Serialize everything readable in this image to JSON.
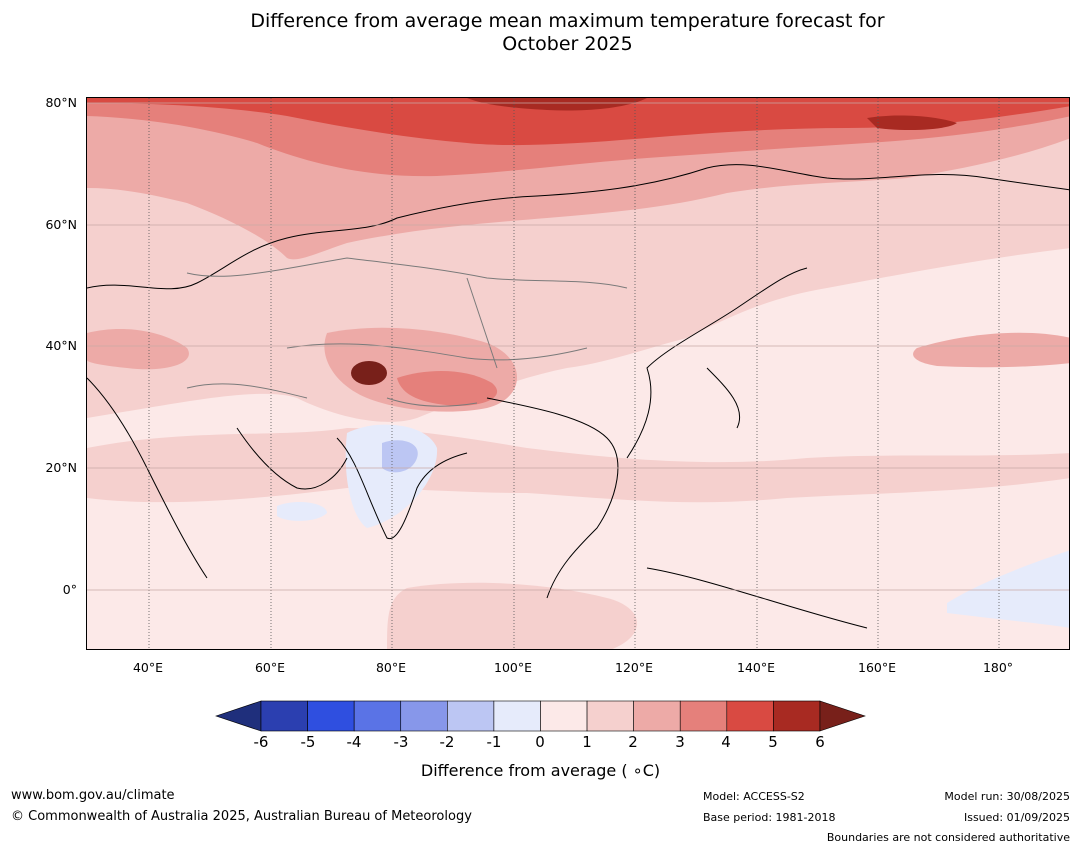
{
  "title_line1": "Difference from average mean maximum temperature forecast for",
  "title_line2": "October 2025",
  "map": {
    "lat_labels": [
      "80°N",
      "60°N",
      "40°N",
      "20°N",
      "0°"
    ],
    "lon_labels": [
      "40°E",
      "60°E",
      "80°E",
      "100°E",
      "120°E",
      "140°E",
      "160°E",
      "180°"
    ]
  },
  "colorbar": {
    "tick_labels": [
      "-6",
      "-5",
      "-4",
      "-3",
      "-2",
      "-1",
      "0",
      "1",
      "2",
      "3",
      "4",
      "5",
      "6"
    ],
    "colors": [
      "#1f2f7c",
      "#2b3fb0",
      "#2f4fe0",
      "#5a73e6",
      "#8797ea",
      "#bcc6f3",
      "#e6ebfb",
      "#fce9e8",
      "#f5d0ce",
      "#edaaa7",
      "#e5807b",
      "#d94a42",
      "#a82a22",
      "#78201a"
    ],
    "label": "Difference from average ( ∘C)"
  },
  "footer": {
    "website": "www.bom.gov.au/climate",
    "copyright": "© Commonwealth of Australia 2025, Australian Bureau of Meteorology",
    "model": "Model: ACCESS-S2",
    "base_period": "Base period: 1981-2018",
    "model_run": "Model run: 30/08/2025",
    "issued": "Issued: 01/09/2025",
    "disclaimer": "Boundaries are not considered authoritative"
  }
}
